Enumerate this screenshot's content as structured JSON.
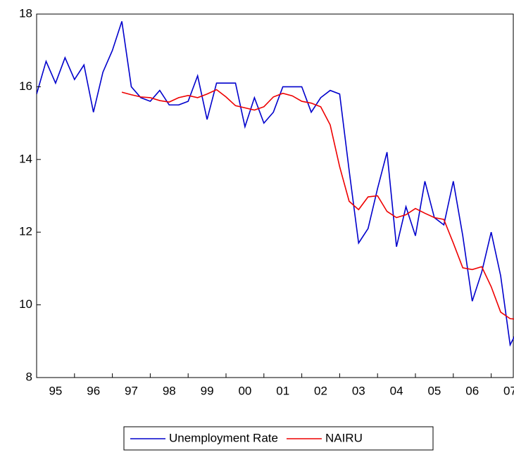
{
  "chart_data": {
    "type": "line",
    "categories": [
      "95",
      null,
      null,
      null,
      "96",
      null,
      null,
      null,
      "97",
      null,
      null,
      null,
      "98",
      null,
      null,
      null,
      "99",
      null,
      null,
      null,
      "00",
      null,
      null,
      null,
      "01",
      null,
      null,
      null,
      "02",
      null,
      null,
      null,
      "03",
      null,
      null,
      null,
      "04",
      null,
      null,
      null,
      "05",
      null,
      null,
      null,
      "06",
      null,
      null,
      null,
      "07",
      null,
      null,
      null
    ],
    "series": [
      {
        "name": "Unemployment Rate",
        "color": "#0000cc",
        "values": [
          15.8,
          16.7,
          16.1,
          16.8,
          16.2,
          16.6,
          15.3,
          16.4,
          17.0,
          17.8,
          16.0,
          15.7,
          15.6,
          15.9,
          15.5,
          15.5,
          15.6,
          16.3,
          15.1,
          16.1,
          16.1,
          16.1,
          14.9,
          15.7,
          15.0,
          15.3,
          16.0,
          16.0,
          16.0,
          15.3,
          15.7,
          15.9,
          15.8,
          13.7,
          11.7,
          12.1,
          13.2,
          14.2,
          11.6,
          12.7,
          11.9,
          13.4,
          12.4,
          12.2,
          13.4,
          11.9,
          10.1,
          10.9,
          12.0,
          10.8,
          8.9,
          9.4
        ]
      },
      {
        "name": "NAIRU",
        "color": "#ee0000",
        "values": [
          null,
          null,
          null,
          null,
          null,
          null,
          null,
          null,
          null,
          15.85,
          15.78,
          15.72,
          15.7,
          15.62,
          15.58,
          15.7,
          15.76,
          15.7,
          15.8,
          15.92,
          15.72,
          15.48,
          15.42,
          15.36,
          15.45,
          15.72,
          15.82,
          15.75,
          15.6,
          15.55,
          15.45,
          14.95,
          13.8,
          12.85,
          12.62,
          12.97,
          13.0,
          12.57,
          12.4,
          12.48,
          12.65,
          12.52,
          12.4,
          12.35,
          11.7,
          11.02,
          10.97,
          11.05,
          10.5,
          9.8,
          9.62,
          9.6
        ]
      }
    ],
    "ylim": [
      8,
      18
    ],
    "yticks": [
      8,
      10,
      12,
      14,
      16,
      18
    ]
  }
}
